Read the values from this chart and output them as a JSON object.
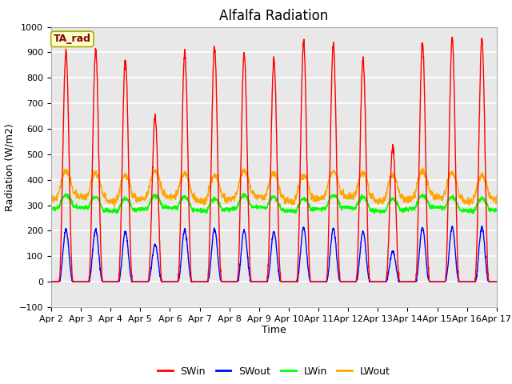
{
  "title": "Alfalfa Radiation",
  "xlabel": "Time",
  "ylabel": "Radiation (W/m2)",
  "ylim": [
    -100,
    1000
  ],
  "x_tick_labels": [
    "Apr 2",
    "Apr 3",
    "Apr 4",
    "Apr 5",
    "Apr 6",
    "Apr 7",
    "Apr 8",
    "Apr 9",
    "Apr 10",
    "Apr 11",
    "Apr 12",
    "Apr 13",
    "Apr 14",
    "Apr 15",
    "Apr 16",
    "Apr 17"
  ],
  "legend_labels": [
    "SWin",
    "SWout",
    "LWin",
    "LWout"
  ],
  "legend_colors": [
    "red",
    "blue",
    "green",
    "orange"
  ],
  "annotation_text": "TA_rad",
  "annotation_box_color": "#FFFFCC",
  "annotation_border_color": "#AAAA00",
  "background_color": "#E8E8E8",
  "grid_color": "white",
  "title_fontsize": 12,
  "label_fontsize": 9,
  "tick_fontsize": 8,
  "legend_fontsize": 9,
  "num_days": 15,
  "SWin_peaks": [
    905,
    910,
    875,
    645,
    900,
    920,
    895,
    875,
    940,
    930,
    875,
    530,
    935,
    950,
    950
  ],
  "SWout_ratio": 0.225,
  "LWin_base": 285,
  "LWin_day_peak": 320,
  "LWout_base": 340,
  "LWout_day_peak": 420,
  "points_per_day": 144
}
